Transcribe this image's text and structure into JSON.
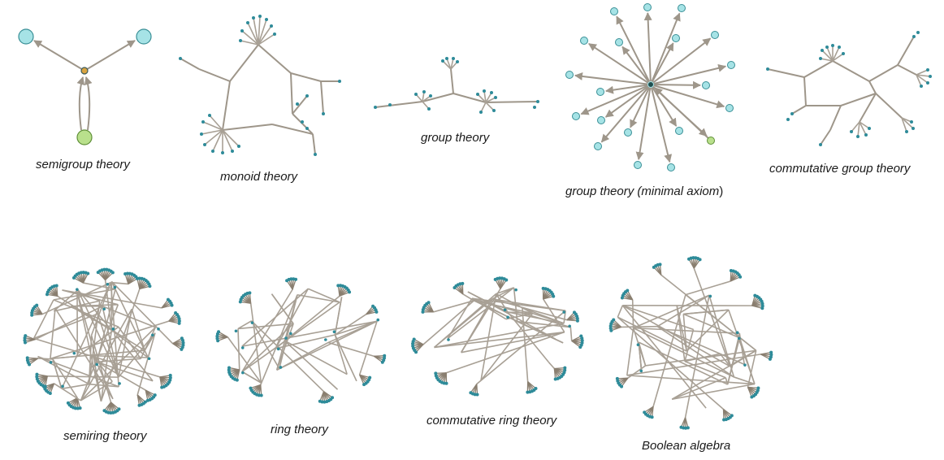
{
  "colors": {
    "edge": "#9e968a",
    "arrow": "#9e968a",
    "leaf_node": "#2e8b99",
    "big_node": "#a6e3e6",
    "big_node_stroke": "#3a8f96",
    "source_node": "#b9e08c",
    "source_stroke": "#5f8f38",
    "hub_node": "#d9a441"
  },
  "captions": {
    "semigroup": "semigroup theory",
    "monoid": "monoid theory",
    "group": "group theory",
    "group_minimal_pre": "group theory (",
    "group_minimal_mid": "minimal axiom",
    "group_minimal_post": ")",
    "commutative_group": "commutative group theory",
    "semiring": "semiring theory",
    "ring": "ring theory",
    "commutative_ring": "commutative ring theory",
    "boolean": "Boolean algebra"
  }
}
